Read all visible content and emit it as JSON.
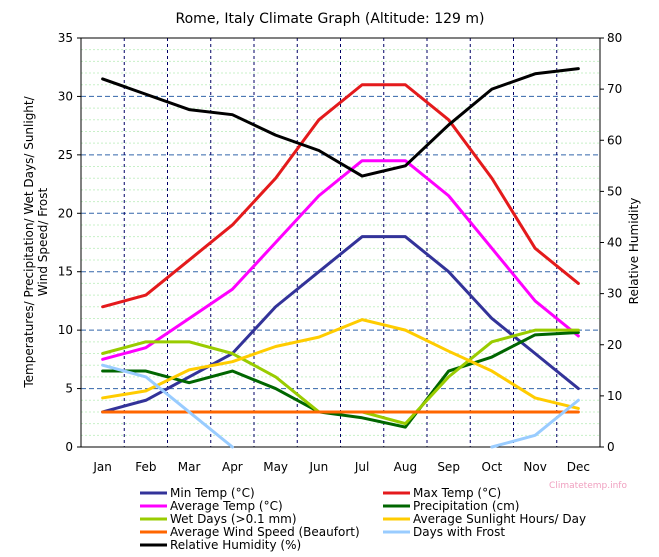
{
  "chart_data": {
    "type": "line",
    "title": "Rome, Italy Climate Graph (Altitude: 129 m)",
    "ylabel_left": [
      "Temperatures/ Precipitation/ Wet Days/ Sunlight/",
      "Wind Speed/ Frost"
    ],
    "ylabel_right": "Relative Humidity",
    "ylim_left": [
      0,
      35
    ],
    "ylim_right": [
      0,
      80
    ],
    "yticks_left": [
      "0",
      "5",
      "10",
      "15",
      "20",
      "25",
      "30",
      "35"
    ],
    "yticks_right": [
      "0",
      "10",
      "20",
      "30",
      "40",
      "50",
      "60",
      "70",
      "80"
    ],
    "categories": [
      "Jan",
      "Feb",
      "Mar",
      "Apr",
      "May",
      "Jun",
      "Jul",
      "Aug",
      "Sep",
      "Oct",
      "Nov",
      "Dec"
    ],
    "grid": true,
    "legend_position": "bottom",
    "series": [
      {
        "name": "Min Temp (°C)",
        "axis": "left",
        "color": "#333399",
        "values": [
          3,
          4,
          6,
          8,
          12,
          15,
          18,
          18,
          15,
          11,
          8,
          5
        ]
      },
      {
        "name": "Max Temp (°C)",
        "axis": "left",
        "color": "#e41a1c",
        "values": [
          12,
          13,
          16,
          19,
          23,
          28,
          31,
          31,
          28,
          23,
          17,
          14
        ]
      },
      {
        "name": "Average Temp (°C)",
        "axis": "left",
        "color": "#ff00ff",
        "values": [
          7.5,
          8.5,
          11,
          13.5,
          17.5,
          21.5,
          24.5,
          24.5,
          21.5,
          17,
          12.5,
          9.5
        ]
      },
      {
        "name": "Precipitation (cm)",
        "axis": "left",
        "color": "#006600",
        "values": [
          6.5,
          6.5,
          5.5,
          6.5,
          5,
          3,
          2.5,
          1.7,
          6.5,
          7.7,
          9.6,
          9.8
        ]
      },
      {
        "name": "Wet Days (>0.1 mm)",
        "axis": "left",
        "color": "#99cc00",
        "values": [
          8,
          9,
          9,
          8,
          6,
          3,
          3,
          2,
          6,
          9,
          10,
          10
        ]
      },
      {
        "name": "Average Sunlight Hours/ Day",
        "axis": "left",
        "color": "#ffcc00",
        "values": [
          4.2,
          4.8,
          6.6,
          7.3,
          8.6,
          9.4,
          10.9,
          10,
          8.2,
          6.5,
          4.2,
          3.3
        ]
      },
      {
        "name": "Average Wind Speed (Beaufort)",
        "axis": "left",
        "color": "#ff6600",
        "values": [
          3,
          3,
          3,
          3,
          3,
          3,
          3,
          3,
          3,
          3,
          3,
          3
        ]
      },
      {
        "name": "Days with Frost",
        "axis": "left",
        "color": "#99ccff",
        "values": [
          7,
          6,
          3,
          0,
          null,
          null,
          null,
          null,
          null,
          0,
          1,
          4
        ]
      },
      {
        "name": "Relative Humidity (%)",
        "axis": "right",
        "color": "#000000",
        "values": [
          72,
          69,
          66,
          65,
          61,
          58,
          53,
          55,
          63,
          70,
          73,
          74
        ]
      }
    ],
    "watermark": "Climatetemp.info"
  }
}
